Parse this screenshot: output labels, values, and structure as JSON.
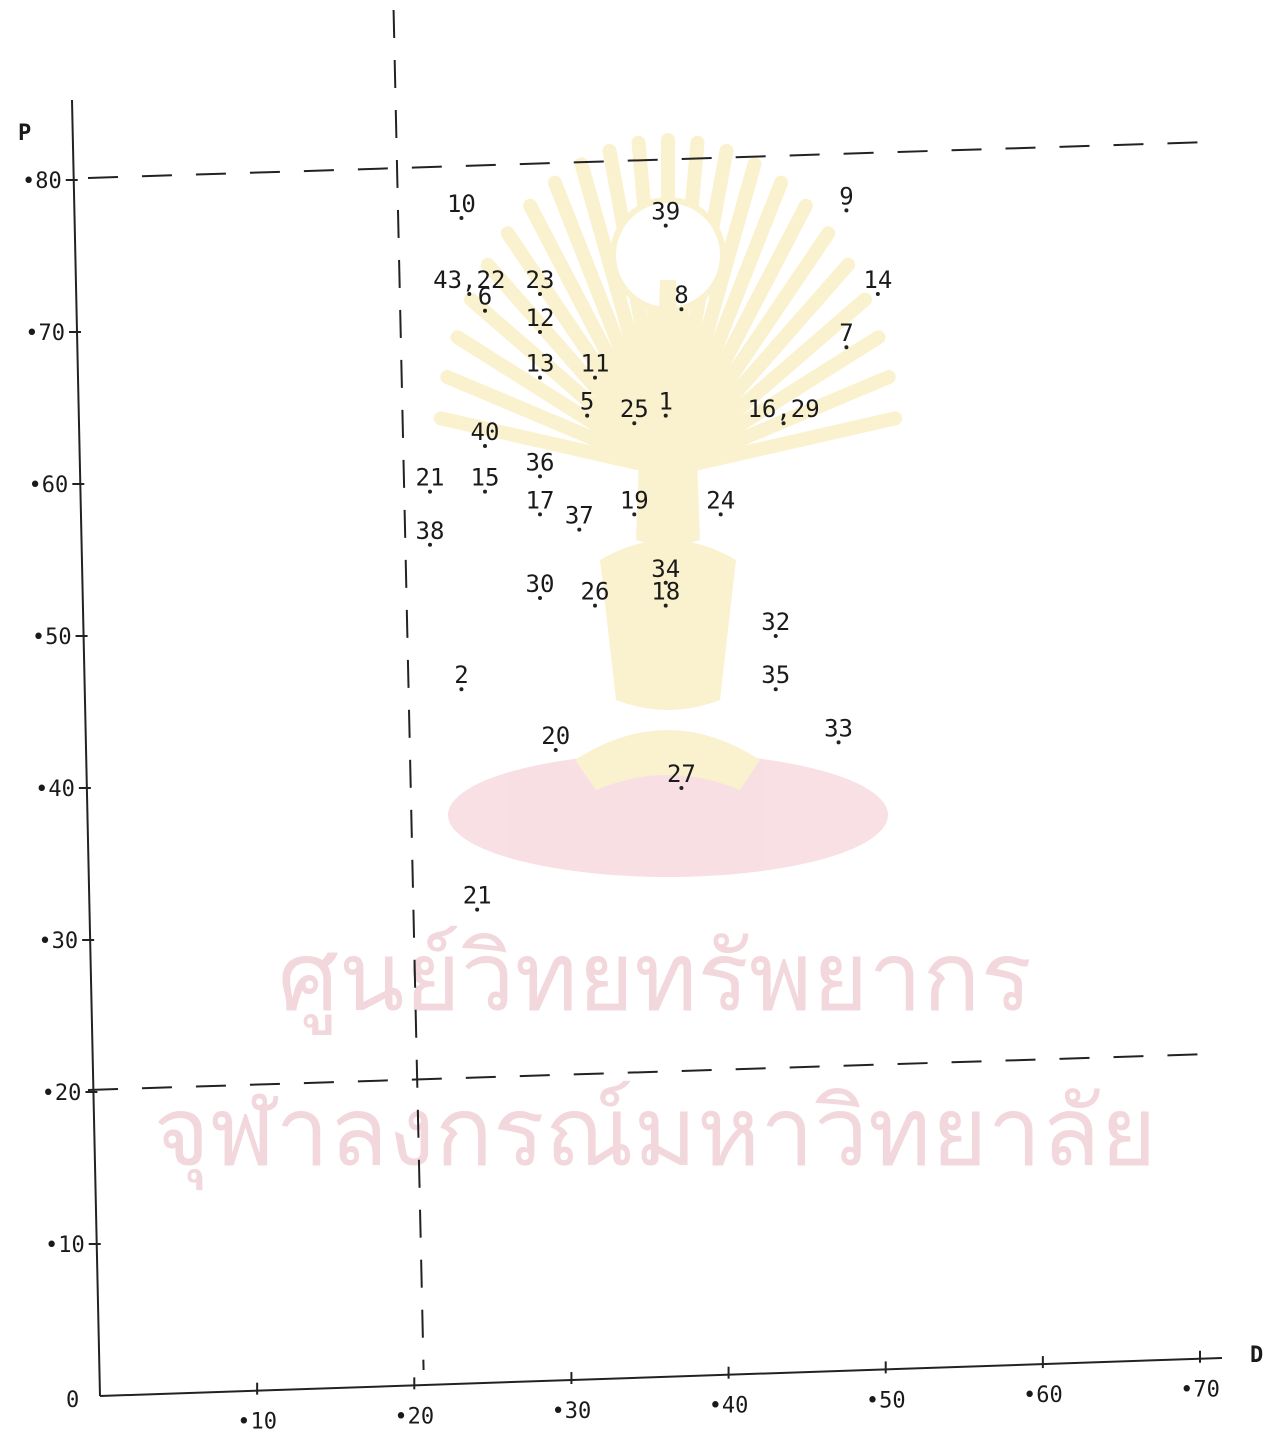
{
  "chart_data": {
    "type": "scatter",
    "title": "",
    "xlabel": "D",
    "ylabel": "P",
    "xlim": [
      0,
      0.7
    ],
    "ylim": [
      0,
      0.8
    ],
    "x_ticks": [
      {
        "value": 0.1,
        "label": ".10"
      },
      {
        "value": 0.2,
        "label": ".20"
      },
      {
        "value": 0.3,
        "label": ".30"
      },
      {
        "value": 0.4,
        "label": ".40"
      },
      {
        "value": 0.5,
        "label": ".50"
      },
      {
        "value": 0.6,
        "label": ".60"
      },
      {
        "value": 0.7,
        "label": ".70"
      }
    ],
    "y_ticks": [
      {
        "value": 0.1,
        "label": ".10"
      },
      {
        "value": 0.2,
        "label": ".20"
      },
      {
        "value": 0.3,
        "label": ".30"
      },
      {
        "value": 0.4,
        "label": ".40"
      },
      {
        "value": 0.5,
        "label": ".50"
      },
      {
        "value": 0.6,
        "label": ".60"
      },
      {
        "value": 0.7,
        "label": ".70"
      },
      {
        "value": 0.8,
        "label": ".80"
      }
    ],
    "origin_label": "0",
    "reference_lines": {
      "vertical": [
        0.19
      ],
      "horizontal": [
        0.2,
        0.8
      ]
    },
    "points": [
      {
        "label": "10",
        "x": 0.23,
        "y": 0.775
      },
      {
        "label": "39",
        "x": 0.36,
        "y": 0.77
      },
      {
        "label": "9",
        "x": 0.475,
        "y": 0.78
      },
      {
        "label": "43,22",
        "x": 0.235,
        "y": 0.725
      },
      {
        "label": "6",
        "x": 0.245,
        "y": 0.714
      },
      {
        "label": "23",
        "x": 0.28,
        "y": 0.725
      },
      {
        "label": "8",
        "x": 0.37,
        "y": 0.715
      },
      {
        "label": "14",
        "x": 0.495,
        "y": 0.725
      },
      {
        "label": "12",
        "x": 0.28,
        "y": 0.7
      },
      {
        "label": "7",
        "x": 0.475,
        "y": 0.69
      },
      {
        "label": "11",
        "x": 0.315,
        "y": 0.67
      },
      {
        "label": "13",
        "x": 0.28,
        "y": 0.67
      },
      {
        "label": "5",
        "x": 0.31,
        "y": 0.645
      },
      {
        "label": "25",
        "x": 0.34,
        "y": 0.64
      },
      {
        "label": "1",
        "x": 0.36,
        "y": 0.645
      },
      {
        "label": "16,29",
        "x": 0.435,
        "y": 0.64
      },
      {
        "label": "40",
        "x": 0.245,
        "y": 0.625
      },
      {
        "label": "21",
        "x": 0.21,
        "y": 0.595
      },
      {
        "label": "36",
        "x": 0.28,
        "y": 0.605
      },
      {
        "label": "15",
        "x": 0.245,
        "y": 0.595
      },
      {
        "label": "17",
        "x": 0.28,
        "y": 0.58
      },
      {
        "label": "19",
        "x": 0.34,
        "y": 0.58
      },
      {
        "label": "24",
        "x": 0.395,
        "y": 0.58
      },
      {
        "label": "37",
        "x": 0.305,
        "y": 0.57
      },
      {
        "label": "38",
        "x": 0.21,
        "y": 0.56
      },
      {
        "label": "34",
        "x": 0.36,
        "y": 0.535
      },
      {
        "label": "30",
        "x": 0.28,
        "y": 0.525
      },
      {
        "label": "26",
        "x": 0.315,
        "y": 0.52
      },
      {
        "label": "18",
        "x": 0.36,
        "y": 0.52
      },
      {
        "label": "32",
        "x": 0.43,
        "y": 0.5
      },
      {
        "label": "2",
        "x": 0.23,
        "y": 0.465
      },
      {
        "label": "35",
        "x": 0.43,
        "y": 0.465
      },
      {
        "label": "20",
        "x": 0.29,
        "y": 0.425
      },
      {
        "label": "33",
        "x": 0.47,
        "y": 0.43
      },
      {
        "label": "27",
        "x": 0.37,
        "y": 0.4
      },
      {
        "label": "21",
        "x": 0.24,
        "y": 0.32
      }
    ]
  },
  "watermark": {
    "line1": "ศูนย์วิทยทรัพยากร",
    "line2": "จุฬาลงกรณ์มหาวิทยาลัย",
    "emblem": "phra-kiao-emblem",
    "color": "#f2d8dc",
    "accent_color": "#f6e7a8"
  }
}
